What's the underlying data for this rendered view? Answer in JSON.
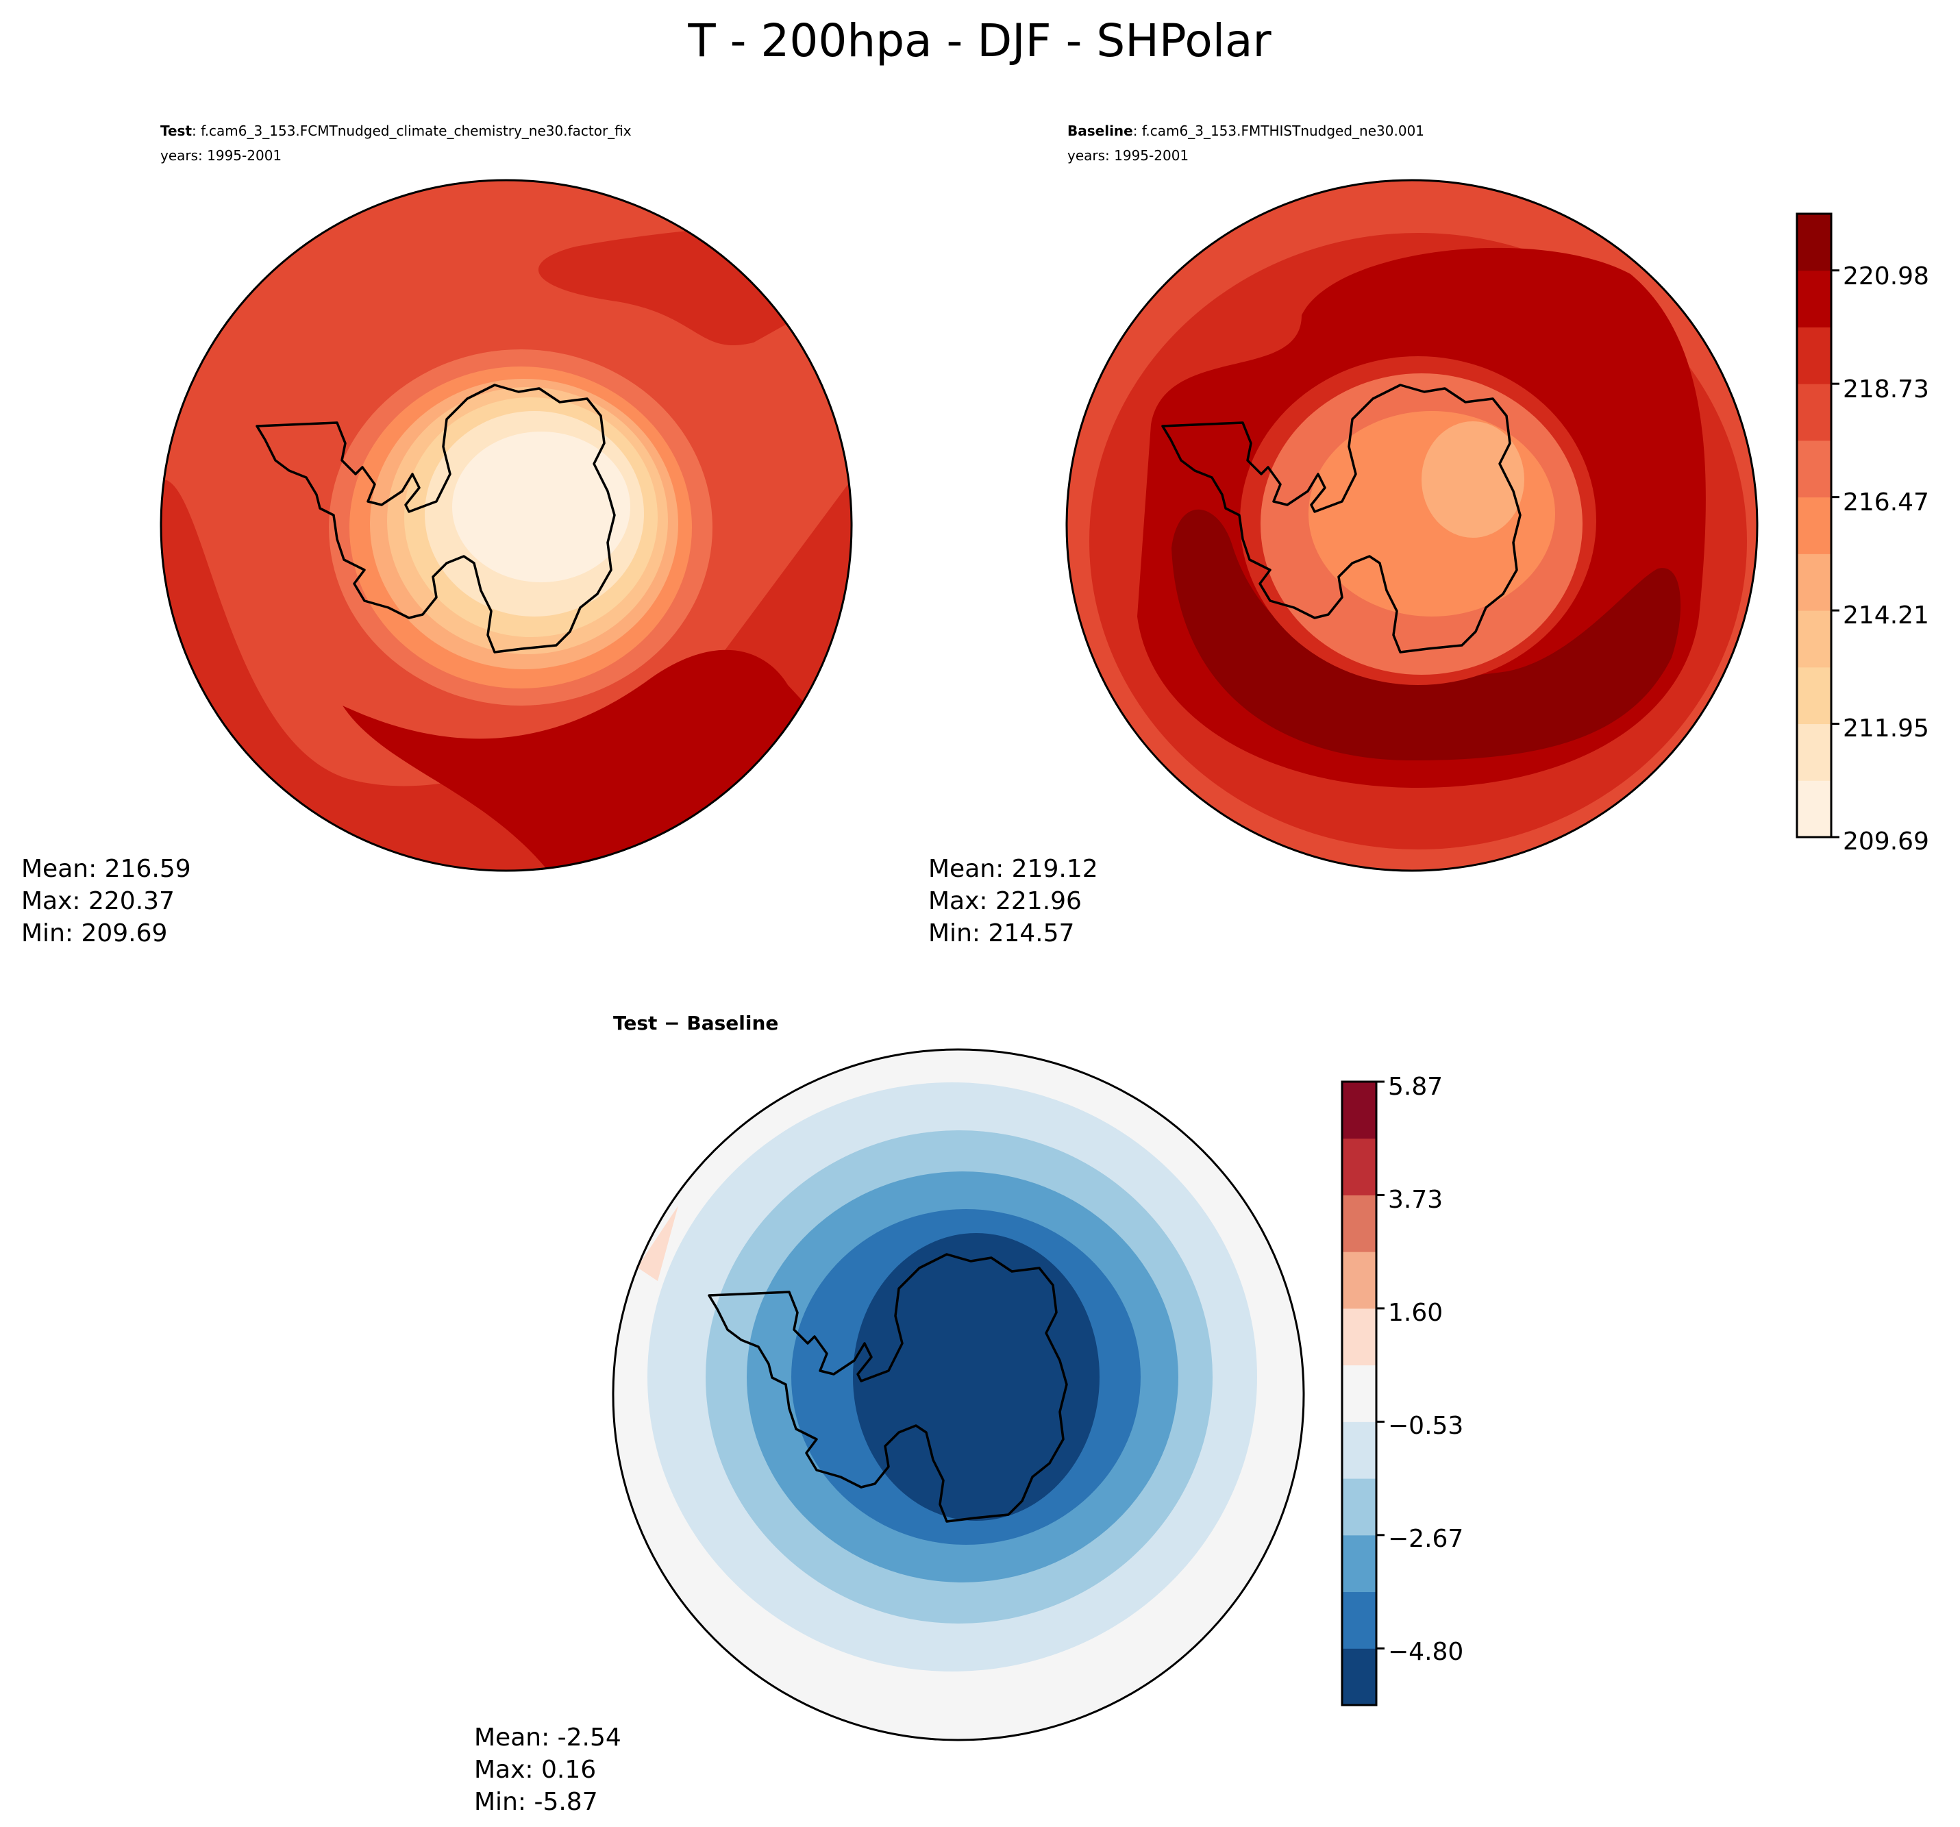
{
  "title": "T - 200hpa - DJF - SHPolar",
  "panels": {
    "test": {
      "label_bold": "Test",
      "label_rest": ": f.cam6_3_153.FCMTnudged_climate_chemistry_ne30.factor_fix",
      "years": "years: 1995-2001",
      "stats": [
        "Mean: 216.59",
        "Max: 220.37",
        "Min: 209.69"
      ]
    },
    "baseline": {
      "label_bold": "Baseline",
      "label_rest": ": f.cam6_3_153.FMTHISTnudged_ne30.001",
      "years": "years: 1995-2001",
      "stats": [
        "Mean: 219.12",
        "Max: 221.96",
        "Min: 214.57"
      ]
    },
    "diff": {
      "label": "Test − Baseline",
      "stats": [
        "Mean: -2.54",
        "Max:  0.16",
        "Min: -5.87"
      ]
    }
  },
  "chart_data": [
    {
      "type": "heatmap",
      "projection": "south-polar-stereographic",
      "name": "Test",
      "colorbar": {
        "range": [
          209.69,
          222.11
        ],
        "ticks": [
          "209.69",
          "211.95",
          "214.21",
          "216.47",
          "218.73",
          "220.98"
        ],
        "colors": [
          "#fef0df",
          "#fee5c4",
          "#fdd49e",
          "#fdc38d",
          "#fcad7a",
          "#fc8d59",
          "#f07050",
          "#e34a33",
          "#d32a1b",
          "#b30000",
          "#8b0000"
        ]
      }
    },
    {
      "type": "heatmap",
      "projection": "south-polar-stereographic",
      "name": "Baseline",
      "colorbar": "shared with Test"
    },
    {
      "type": "heatmap",
      "projection": "south-polar-stereographic",
      "name": "Test − Baseline",
      "colorbar": {
        "range": [
          -5.87,
          5.87
        ],
        "ticks": [
          "−4.80",
          "−2.67",
          "−0.53",
          "1.60",
          "3.73",
          "5.87"
        ],
        "colors": [
          "#11437b",
          "#2c74b4",
          "#5aa0cc",
          "#9fcae1",
          "#d4e5f0",
          "#f5f5f5",
          "#fcdccd",
          "#f4ae8d",
          "#de7660",
          "#bd2f35",
          "#870a24"
        ]
      }
    }
  ]
}
